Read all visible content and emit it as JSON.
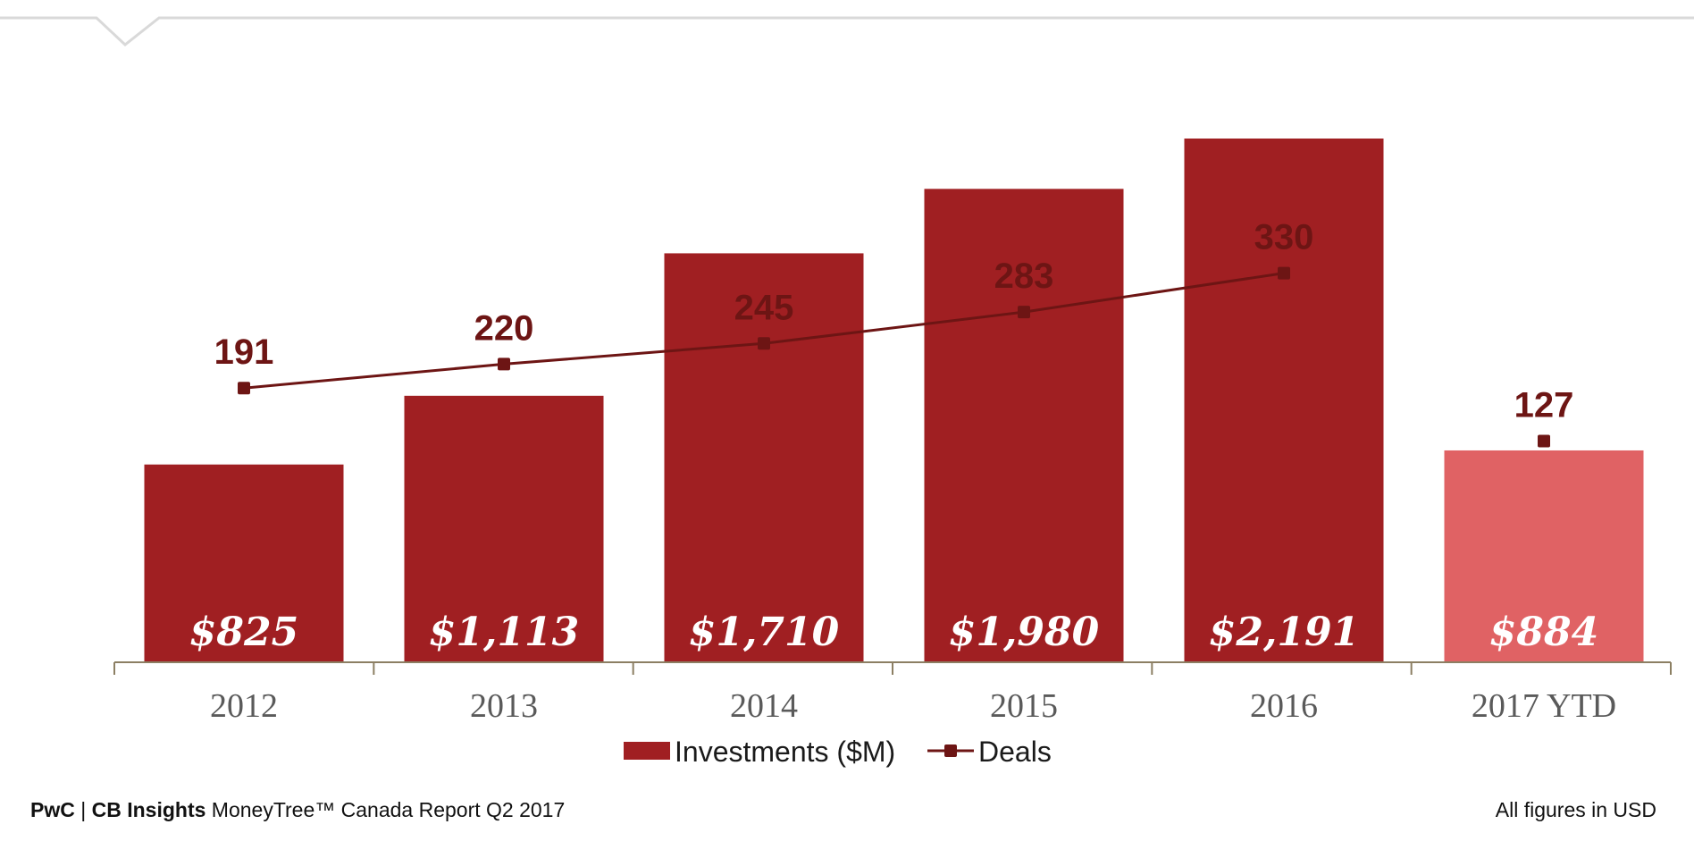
{
  "chart_data": {
    "type": "bar",
    "categories": [
      "2012",
      "2013",
      "2014",
      "2015",
      "2016",
      "2017 YTD"
    ],
    "series": [
      {
        "name": "Investments ($M)",
        "type": "bar",
        "values": [
          825,
          1113,
          1710,
          1980,
          2191,
          884
        ],
        "labels": [
          "$825",
          "$1,113",
          "$1,710",
          "$1,980",
          "$2,191",
          "$884"
        ],
        "color": "#a01f22",
        "highlight_color": "#e06264"
      },
      {
        "name": "Deals",
        "type": "line",
        "values": [
          191,
          220,
          245,
          283,
          330,
          127
        ],
        "color": "#6d1514",
        "connected_points": 5
      }
    ],
    "title": "",
    "xlabel": "",
    "ylabel": "",
    "legend": "bottom-center",
    "grid": false
  },
  "footer": {
    "brand_pwc": "PwC",
    "separator": " | ",
    "brand_cb": "CB Insights",
    "report": " MoneyTree™ Canada Report Q2 2017",
    "note": "All figures in USD"
  }
}
